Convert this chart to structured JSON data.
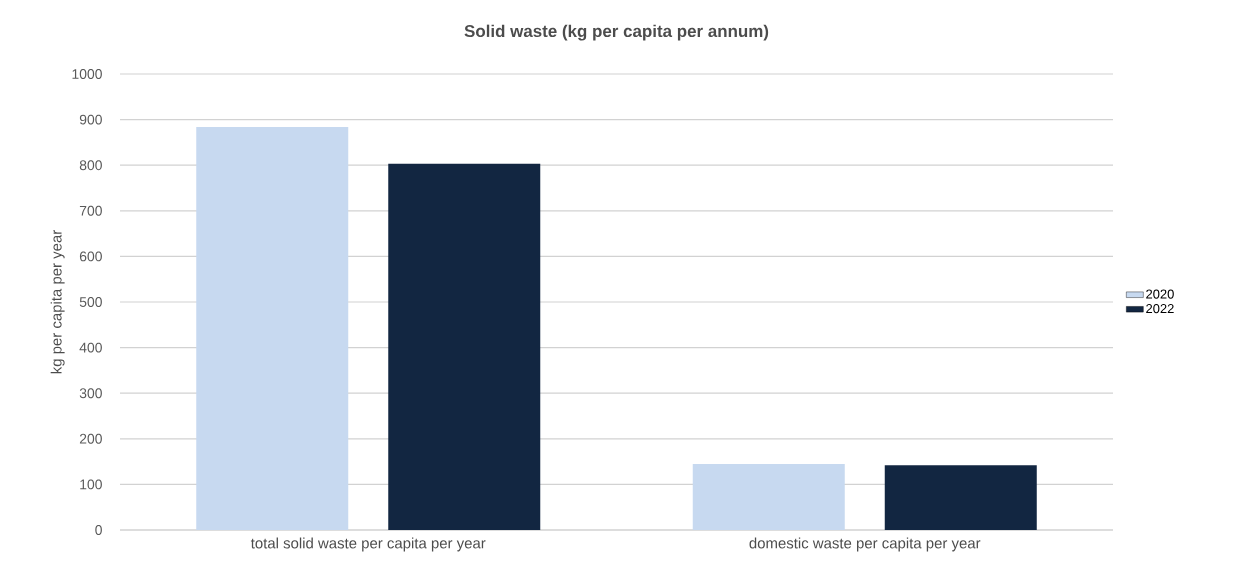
{
  "chart_data": {
    "type": "bar",
    "title": "Solid waste (kg per capita per annum)",
    "ylabel": "kg per capita per year",
    "categories": [
      "total solid waste per capita per year",
      "domestic waste per capita per year"
    ],
    "series": [
      {
        "name": "2020",
        "color": "#c7d9f0",
        "values": [
          884,
          145
        ]
      },
      {
        "name": "2022",
        "color": "#122641",
        "values": [
          803,
          142
        ]
      }
    ],
    "ylim": [
      0,
      1000
    ],
    "yticks": [
      0,
      100,
      200,
      300,
      400,
      500,
      600,
      700,
      800,
      900,
      1000
    ],
    "grid": "y",
    "legend": "right"
  }
}
